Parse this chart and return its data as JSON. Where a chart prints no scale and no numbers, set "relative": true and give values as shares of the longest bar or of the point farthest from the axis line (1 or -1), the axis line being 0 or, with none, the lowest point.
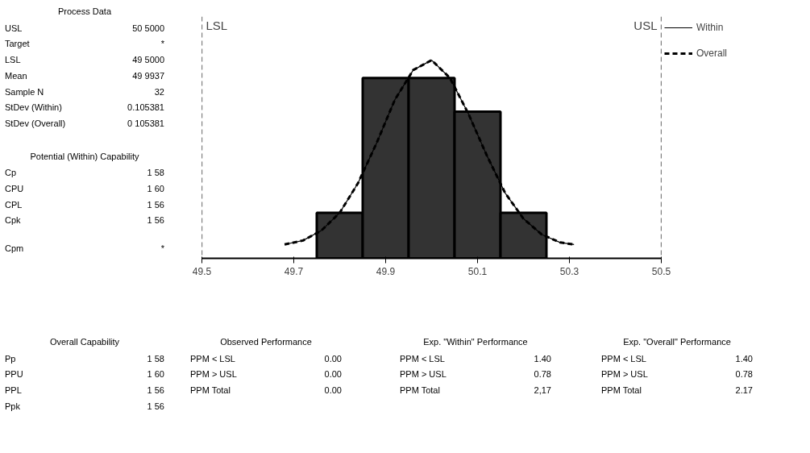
{
  "chart_data": {
    "type": "histogram",
    "relative": true,
    "xlim": [
      49.5,
      50.5
    ],
    "xticks": [
      49.5,
      49.7,
      49.9,
      50.1,
      50.3,
      50.5
    ],
    "grid": false,
    "legend": "top right",
    "series": [
      {
        "color": "#333333",
        "bins": [
          49.75,
          49.85,
          49.95,
          50.05,
          50.15,
          50.25
        ],
        "values": [
          0.23,
          0.91,
          0.91,
          0.74,
          0.23
        ]
      },
      {
        "type": "line",
        "name": "Within",
        "color": "#000000",
        "line_style": "solid",
        "x": [
          49.68,
          49.72,
          49.76,
          49.8,
          49.84,
          49.88,
          49.92,
          49.96,
          50.0,
          50.04,
          50.08,
          50.12,
          50.16,
          50.2,
          50.24,
          50.28,
          50.31
        ],
        "values": [
          0.07,
          0.09,
          0.14,
          0.23,
          0.38,
          0.58,
          0.8,
          0.95,
          1.0,
          0.91,
          0.73,
          0.52,
          0.33,
          0.2,
          0.12,
          0.08,
          0.07
        ]
      },
      {
        "type": "line",
        "name": "Overall",
        "color": "#000000",
        "line_style": "dashed",
        "x": [
          49.68,
          49.72,
          49.76,
          49.8,
          49.84,
          49.88,
          49.92,
          49.96,
          50.0,
          50.04,
          50.08,
          50.12,
          50.16,
          50.2,
          50.24,
          50.28,
          50.31
        ],
        "values": [
          0.07,
          0.09,
          0.14,
          0.23,
          0.38,
          0.58,
          0.8,
          0.95,
          1.0,
          0.91,
          0.73,
          0.52,
          0.33,
          0.2,
          0.12,
          0.08,
          0.07
        ]
      }
    ],
    "ref_lines": [
      {
        "axis": "x",
        "value": 49.5,
        "label": "LSL",
        "line_style": "dashed",
        "color": "#000000"
      },
      {
        "axis": "x",
        "value": 50.5,
        "label": "USL",
        "line_style": "dashed",
        "color": "#000000"
      }
    ],
    "annotations": [
      "Process Data",
      "USL",
      "50 5000",
      "Target",
      "*",
      "LSL",
      "49 5000",
      "Mean",
      "49 9937",
      "Sample N",
      "32",
      "StDev (Within)",
      "0.105381",
      "StDev (Overall)",
      "0 105381",
      "Potential (Within) Capability",
      "Cp",
      "1 58",
      "CPU",
      "1 60",
      "CPL",
      "1 56",
      "Cpk",
      "1 56",
      "Cpm",
      "*",
      "Overall Capability",
      "Pp",
      "1 58",
      "PPU",
      "1 60",
      "PPL",
      "1 56",
      "Ppk",
      "1 56",
      "Observed Performance",
      "PPM < LSL",
      "0.00",
      "PPM > USL",
      "0.00",
      "PPM Total",
      "0.00",
      "Exp. \"Within\" Performance",
      "PPM < LSL",
      "1.40",
      "PPM > USL",
      "0.78",
      "PPM Total",
      "2,17",
      "Exp. \"Overall\" Performance",
      "PPM < LSL",
      "1.40",
      "PPM > USL",
      "0.78",
      "PPM Total",
      "2.17"
    ]
  }
}
